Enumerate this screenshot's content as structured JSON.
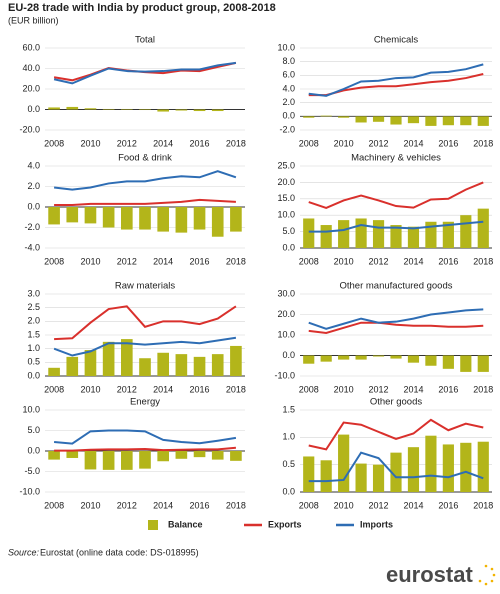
{
  "header": {
    "title": "EU-28 trade with India by product group, 2008-2018",
    "subtitle": "(EUR billion)"
  },
  "footer": {
    "source_label": "Source:",
    "source": "Eurostat (online data code: DS-018995)",
    "logo": "eurostat"
  },
  "chart_data": [
    {
      "type": "combo",
      "title": "Total",
      "x": [
        2008,
        2009,
        2010,
        2011,
        2012,
        2013,
        2014,
        2015,
        2016,
        2017,
        2018
      ],
      "xlim": [
        2007.5,
        2018.5
      ],
      "xticks": [
        2008,
        2010,
        2012,
        2014,
        2016,
        2018
      ],
      "ylim": [
        -20,
        60
      ],
      "yticks": [
        {
          "value": -20,
          "label": "-20.0"
        },
        {
          "value": 0,
          "label": "0.0"
        },
        {
          "value": 20,
          "label": "20.0"
        },
        {
          "value": 40,
          "label": "40.0"
        },
        {
          "value": 60,
          "label": "60.0"
        }
      ],
      "series": [
        {
          "name": "Balance",
          "kind": "bar",
          "color": "#b3b51a",
          "values": [
            2,
            2.5,
            1.2,
            0.5,
            0.5,
            -0.5,
            -2,
            -1,
            -1.5,
            -1.5,
            0
          ]
        },
        {
          "name": "Exports",
          "kind": "line",
          "color": "#d9302c",
          "values": [
            31.5,
            28.5,
            34,
            40.5,
            38,
            36.5,
            35.5,
            38,
            37.5,
            41.5,
            45.5
          ]
        },
        {
          "name": "Imports",
          "kind": "line",
          "color": "#2e6db4",
          "values": [
            29.5,
            25.5,
            33,
            40,
            37.5,
            37,
            37.5,
            39,
            39,
            43,
            45.5
          ]
        }
      ]
    },
    {
      "type": "combo",
      "title": "Chemicals",
      "x": [
        2008,
        2009,
        2010,
        2011,
        2012,
        2013,
        2014,
        2015,
        2016,
        2017,
        2018
      ],
      "xlim": [
        2007.5,
        2018.5
      ],
      "xticks": [
        2008,
        2010,
        2012,
        2014,
        2016,
        2018
      ],
      "ylim": [
        -2,
        10
      ],
      "yticks": [
        {
          "value": -2,
          "label": "-2.0"
        },
        {
          "value": 0,
          "label": "0.0"
        },
        {
          "value": 2,
          "label": "2.0"
        },
        {
          "value": 4,
          "label": "4.0"
        },
        {
          "value": 6,
          "label": "6.0"
        },
        {
          "value": 8,
          "label": "8.0"
        },
        {
          "value": 10,
          "label": "10.0"
        }
      ],
      "series": [
        {
          "name": "Balance",
          "kind": "bar",
          "color": "#b3b51a",
          "values": [
            -0.2,
            0.1,
            -0.2,
            -0.9,
            -0.8,
            -1.2,
            -1.0,
            -1.4,
            -1.3,
            -1.3,
            -1.4
          ]
        },
        {
          "name": "Exports",
          "kind": "line",
          "color": "#d9302c",
          "values": [
            3.1,
            3.1,
            3.8,
            4.2,
            4.4,
            4.4,
            4.7,
            5.0,
            5.2,
            5.6,
            6.2
          ]
        },
        {
          "name": "Imports",
          "kind": "line",
          "color": "#2e6db4",
          "values": [
            3.3,
            3.0,
            4.0,
            5.1,
            5.2,
            5.6,
            5.7,
            6.4,
            6.5,
            6.9,
            7.6
          ]
        }
      ]
    },
    {
      "type": "combo",
      "title": "Food & drink",
      "x": [
        2008,
        2009,
        2010,
        2011,
        2012,
        2013,
        2014,
        2015,
        2016,
        2017,
        2018
      ],
      "xlim": [
        2007.5,
        2018.5
      ],
      "xticks": [
        2008,
        2010,
        2012,
        2014,
        2016,
        2018
      ],
      "ylim": [
        -4,
        4
      ],
      "yticks": [
        {
          "value": -4,
          "label": "-4.0"
        },
        {
          "value": -2,
          "label": "-2.0"
        },
        {
          "value": 0,
          "label": "0.0"
        },
        {
          "value": 2,
          "label": "2.0"
        },
        {
          "value": 4,
          "label": "4.0"
        }
      ],
      "series": [
        {
          "name": "Balance",
          "kind": "bar",
          "color": "#b3b51a",
          "values": [
            -1.7,
            -1.5,
            -1.6,
            -2.0,
            -2.2,
            -2.2,
            -2.4,
            -2.5,
            -2.2,
            -2.9,
            -2.4
          ]
        },
        {
          "name": "Exports",
          "kind": "line",
          "color": "#d9302c",
          "values": [
            0.2,
            0.2,
            0.3,
            0.3,
            0.3,
            0.3,
            0.4,
            0.5,
            0.7,
            0.6,
            0.5
          ]
        },
        {
          "name": "Imports",
          "kind": "line",
          "color": "#2e6db4",
          "values": [
            1.9,
            1.7,
            1.9,
            2.3,
            2.5,
            2.5,
            2.8,
            3.0,
            2.9,
            3.5,
            2.9
          ]
        }
      ]
    },
    {
      "type": "combo",
      "title": "Machinery & vehicles",
      "x": [
        2008,
        2009,
        2010,
        2011,
        2012,
        2013,
        2014,
        2015,
        2016,
        2017,
        2018
      ],
      "xlim": [
        2007.5,
        2018.5
      ],
      "xticks": [
        2008,
        2010,
        2012,
        2014,
        2016,
        2018
      ],
      "ylim": [
        0,
        25
      ],
      "yticks": [
        {
          "value": 0,
          "label": "0.0"
        },
        {
          "value": 5,
          "label": "5.0"
        },
        {
          "value": 10,
          "label": "10.0"
        },
        {
          "value": 15,
          "label": "15.0"
        },
        {
          "value": 20,
          "label": "20.0"
        },
        {
          "value": 25,
          "label": "25.0"
        }
      ],
      "series": [
        {
          "name": "Balance",
          "kind": "bar",
          "color": "#b3b51a",
          "values": [
            9,
            7,
            8.5,
            9,
            8.5,
            7,
            6.5,
            8,
            8,
            10,
            12
          ]
        },
        {
          "name": "Exports",
          "kind": "line",
          "color": "#d9302c",
          "values": [
            14,
            12.2,
            14.5,
            16,
            14.5,
            12.8,
            12.3,
            14.8,
            15,
            17.8,
            20
          ]
        },
        {
          "name": "Imports",
          "kind": "line",
          "color": "#2e6db4",
          "values": [
            5,
            5,
            5.5,
            7,
            6.2,
            6.2,
            6,
            6.5,
            7,
            7.5,
            8
          ]
        }
      ]
    },
    {
      "type": "combo",
      "title": "Raw materials",
      "x": [
        2008,
        2009,
        2010,
        2011,
        2012,
        2013,
        2014,
        2015,
        2016,
        2017,
        2018
      ],
      "xlim": [
        2007.5,
        2018.5
      ],
      "xticks": [
        2008,
        2010,
        2012,
        2014,
        2016,
        2018
      ],
      "ylim": [
        0,
        3
      ],
      "yticks": [
        {
          "value": 0,
          "label": "0.0"
        },
        {
          "value": 0.5,
          "label": "0.5"
        },
        {
          "value": 1,
          "label": "1.0"
        },
        {
          "value": 1.5,
          "label": "1.5"
        },
        {
          "value": 2,
          "label": "2.0"
        },
        {
          "value": 2.5,
          "label": "2.5"
        },
        {
          "value": 3,
          "label": "3.0"
        }
      ],
      "series": [
        {
          "name": "Balance",
          "kind": "bar",
          "color": "#b3b51a",
          "values": [
            0.3,
            0.7,
            0.95,
            1.25,
            1.35,
            0.65,
            0.85,
            0.8,
            0.7,
            0.8,
            1.1
          ]
        },
        {
          "name": "Exports",
          "kind": "line",
          "color": "#d9302c",
          "values": [
            1.35,
            1.38,
            1.95,
            2.45,
            2.55,
            1.8,
            2.0,
            2.0,
            1.9,
            2.1,
            2.55
          ]
        },
        {
          "name": "Imports",
          "kind": "line",
          "color": "#2e6db4",
          "values": [
            1.0,
            0.75,
            0.9,
            1.2,
            1.2,
            1.15,
            1.2,
            1.25,
            1.2,
            1.3,
            1.4
          ]
        }
      ]
    },
    {
      "type": "combo",
      "title": "Other manufactured goods",
      "x": [
        2008,
        2009,
        2010,
        2011,
        2012,
        2013,
        2014,
        2015,
        2016,
        2017,
        2018
      ],
      "xlim": [
        2007.5,
        2018.5
      ],
      "xticks": [
        2008,
        2010,
        2012,
        2014,
        2016,
        2018
      ],
      "ylim": [
        -10,
        30
      ],
      "yticks": [
        {
          "value": -10,
          "label": "-10.0"
        },
        {
          "value": 0,
          "label": "0.0"
        },
        {
          "value": 10,
          "label": "10.0"
        },
        {
          "value": 20,
          "label": "20.0"
        },
        {
          "value": 30,
          "label": "30.0"
        }
      ],
      "series": [
        {
          "name": "Balance",
          "kind": "bar",
          "color": "#b3b51a",
          "values": [
            -4,
            -3,
            -2,
            -2,
            -0.5,
            -1.5,
            -3.5,
            -5,
            -6.5,
            -8,
            -8
          ]
        },
        {
          "name": "Exports",
          "kind": "line",
          "color": "#d9302c",
          "values": [
            12,
            11,
            13.5,
            16,
            16,
            15,
            14.5,
            14.5,
            14,
            14,
            14.5
          ]
        },
        {
          "name": "Imports",
          "kind": "line",
          "color": "#2e6db4",
          "values": [
            16,
            13,
            15.5,
            18,
            16,
            16.5,
            18,
            20,
            21,
            22,
            22.5
          ]
        }
      ]
    },
    {
      "type": "combo",
      "title": "Energy",
      "x": [
        2008,
        2009,
        2010,
        2011,
        2012,
        2013,
        2014,
        2015,
        2016,
        2017,
        2018
      ],
      "xlim": [
        2007.5,
        2018.5
      ],
      "xticks": [
        2008,
        2010,
        2012,
        2014,
        2016,
        2018
      ],
      "ylim": [
        -10,
        10
      ],
      "yticks": [
        {
          "value": -10,
          "label": "-10.0"
        },
        {
          "value": -5,
          "label": "-5.0"
        },
        {
          "value": 0,
          "label": "0.0"
        },
        {
          "value": 5,
          "label": "5.0"
        },
        {
          "value": 10,
          "label": "10.0"
        }
      ],
      "series": [
        {
          "name": "Balance",
          "kind": "bar",
          "color": "#b3b51a",
          "values": [
            -2.1,
            -1.7,
            -4.5,
            -4.6,
            -4.6,
            -4.3,
            -2.5,
            -1.9,
            -1.5,
            -2.1,
            -2.4
          ]
        },
        {
          "name": "Exports",
          "kind": "line",
          "color": "#d9302c",
          "values": [
            0.1,
            0.1,
            0.3,
            0.4,
            0.4,
            0.5,
            0.2,
            0.3,
            0.4,
            0.4,
            0.8
          ]
        },
        {
          "name": "Imports",
          "kind": "line",
          "color": "#2e6db4",
          "values": [
            2.2,
            1.8,
            4.8,
            5.0,
            5.0,
            4.8,
            2.7,
            2.2,
            1.9,
            2.5,
            3.2
          ]
        }
      ]
    },
    {
      "type": "combo",
      "title": "Other goods",
      "x": [
        2008,
        2009,
        2010,
        2011,
        2012,
        2013,
        2014,
        2015,
        2016,
        2017,
        2018
      ],
      "xlim": [
        2007.5,
        2018.5
      ],
      "xticks": [
        2008,
        2010,
        2012,
        2014,
        2016,
        2018
      ],
      "ylim": [
        0,
        1.5
      ],
      "yticks": [
        {
          "value": 0,
          "label": "0.0"
        },
        {
          "value": 0.5,
          "label": "0.5"
        },
        {
          "value": 1,
          "label": "1.0"
        },
        {
          "value": 1.5,
          "label": "1.5"
        }
      ],
      "series": [
        {
          "name": "Balance",
          "kind": "bar",
          "color": "#b3b51a",
          "values": [
            0.65,
            0.58,
            1.05,
            0.52,
            0.5,
            0.72,
            0.82,
            1.03,
            0.87,
            0.9,
            0.92
          ]
        },
        {
          "name": "Exports",
          "kind": "line",
          "color": "#d9302c",
          "values": [
            0.85,
            0.78,
            1.27,
            1.23,
            1.1,
            0.97,
            1.07,
            1.32,
            1.13,
            1.25,
            1.18
          ]
        },
        {
          "name": "Imports",
          "kind": "line",
          "color": "#2e6db4",
          "values": [
            0.2,
            0.2,
            0.22,
            0.72,
            0.62,
            0.27,
            0.27,
            0.3,
            0.27,
            0.37,
            0.25
          ]
        }
      ]
    }
  ]
}
